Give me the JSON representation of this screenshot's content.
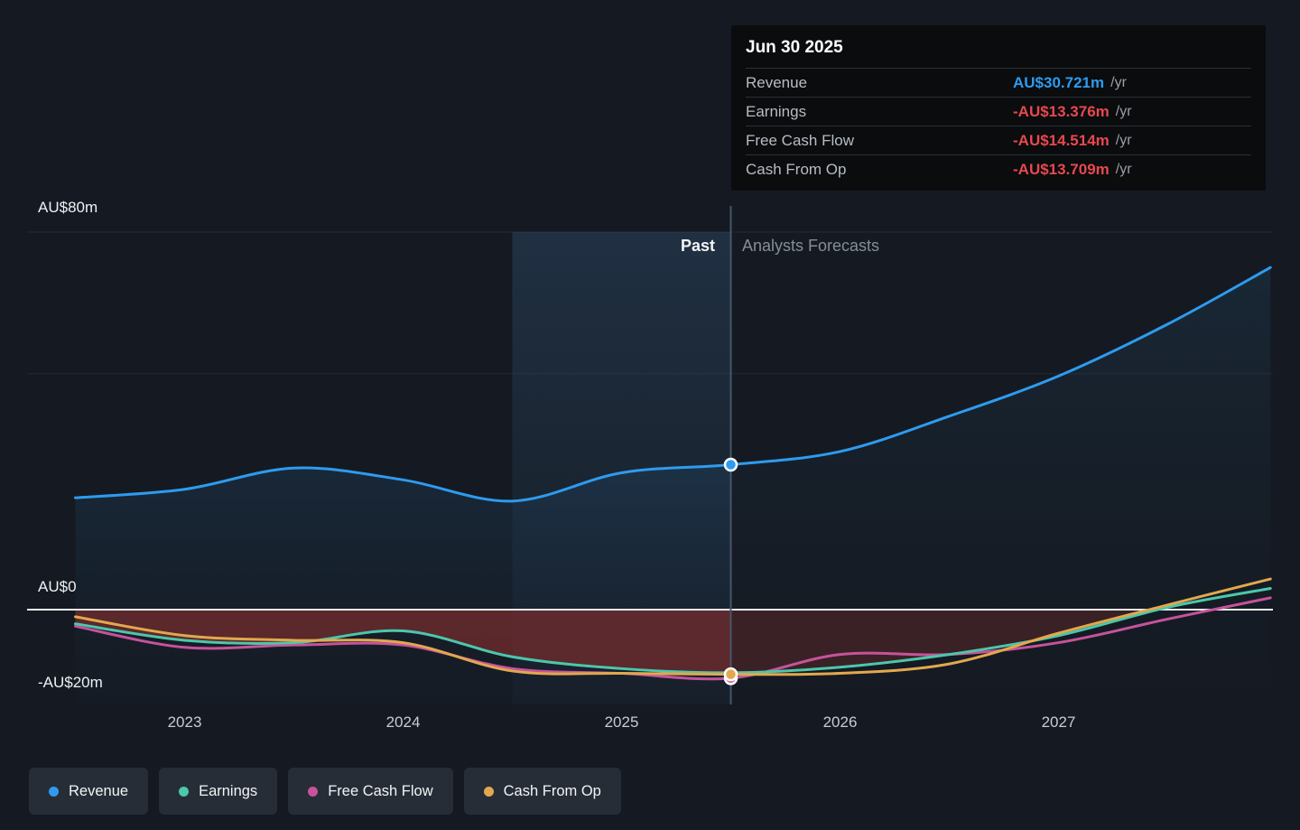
{
  "page": {
    "background": "#151a22"
  },
  "tooltip": {
    "title": "Jun 30 2025",
    "rows": [
      {
        "label": "Revenue",
        "value": "AU$30.721m",
        "suffix": "/yr",
        "color": "#2e9bef"
      },
      {
        "label": "Earnings",
        "value": "-AU$13.376m",
        "suffix": "/yr",
        "color": "#e8484e"
      },
      {
        "label": "Free Cash Flow",
        "value": "-AU$14.514m",
        "suffix": "/yr",
        "color": "#e8484e"
      },
      {
        "label": "Cash From Op",
        "value": "-AU$13.709m",
        "suffix": "/yr",
        "color": "#e8484e"
      }
    ]
  },
  "chart": {
    "past_label": "Past",
    "forecast_label": "Analysts Forecasts",
    "y_axis_labels": [
      "AU$80m",
      "AU$0",
      "-AU$20m"
    ],
    "x_axis_labels": [
      "2023",
      "2024",
      "2025",
      "2026",
      "2027"
    ]
  },
  "legend": {
    "items": [
      {
        "label": "Revenue",
        "color": "#2e9bef"
      },
      {
        "label": "Earnings",
        "color": "#4cc7ab"
      },
      {
        "label": "Free Cash Flow",
        "color": "#c6539b"
      },
      {
        "label": "Cash From Op",
        "color": "#e2a84e"
      }
    ]
  },
  "chart_data": {
    "type": "line",
    "title": "Company financials: past results and analyst forecasts",
    "x_unit": "year",
    "currency": "AUD (millions)",
    "ylim": [
      -20,
      80
    ],
    "yticks": [
      80,
      50,
      0,
      -20
    ],
    "xticks": [
      2023,
      2024,
      2025,
      2026,
      2027
    ],
    "divider_x": 2025.5,
    "divider_date": "Jun 30 2025",
    "highlight_band_x": [
      2024.5,
      2025.5
    ],
    "legend_position": "bottom-left",
    "grid": "horizontal-only",
    "x": [
      2022.5,
      2023,
      2023.5,
      2024,
      2024.5,
      2025,
      2025.5,
      2026,
      2026.5,
      2027,
      2027.5,
      2027.97
    ],
    "series": [
      {
        "name": "Revenue",
        "color": "#2e9bef",
        "values": [
          23.7,
          25.5,
          30,
          27.5,
          23,
          29,
          30.721,
          33.5,
          41,
          49.5,
          60.5,
          72.5
        ]
      },
      {
        "name": "Earnings",
        "color": "#4cc7ab",
        "values": [
          -3,
          -6.5,
          -7,
          -4.5,
          -10,
          -12.5,
          -13.376,
          -12.2,
          -9.5,
          -5.5,
          0.5,
          4.5
        ]
      },
      {
        "name": "Free Cash Flow",
        "color": "#c6539b",
        "values": [
          -3.5,
          -8,
          -7.5,
          -7.5,
          -12.5,
          -13.5,
          -14.514,
          -9.5,
          -9.5,
          -7,
          -2,
          2.5
        ]
      },
      {
        "name": "Cash From Op",
        "color": "#e2a84e",
        "values": [
          -1.5,
          -5.5,
          -6.5,
          -7,
          -13,
          -13.5,
          -13.709,
          -13.5,
          -11.5,
          -5,
          1,
          6.5
        ]
      }
    ],
    "markers": [
      {
        "series": "Free Cash Flow",
        "x": 2025.5,
        "y": -14.514
      },
      {
        "series": "Cash From Op",
        "x": 2025.5,
        "y": -13.709
      },
      {
        "series": "Revenue",
        "x": 2025.5,
        "y": 30.721
      }
    ]
  }
}
